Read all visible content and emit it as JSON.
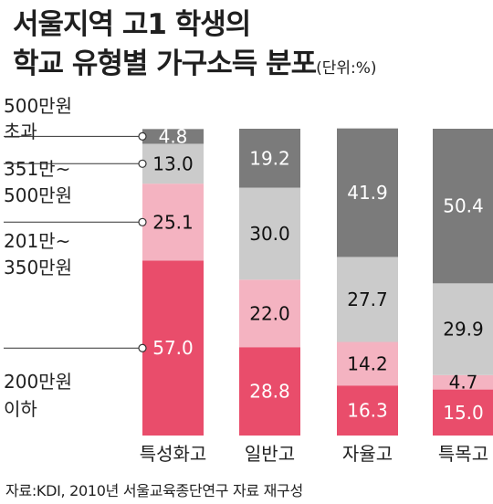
{
  "title": {
    "line1": "서울지역 고1 학생의",
    "line2": "학교 유형별 가구소득 분포",
    "unit": "(단위:%)"
  },
  "source": "자료:KDI, 2010년 서울교육종단연구 자료 재구성",
  "colors": {
    "over500": "#7b7b7b",
    "r351_500": "#cbcbcb",
    "r201_350": "#f4b3c1",
    "under200": "#e94d6b"
  },
  "chart_data": {
    "type": "bar",
    "stacked": true,
    "percent": true,
    "categories": [
      "특성화고",
      "일반고",
      "자율고",
      "특목고"
    ],
    "ylim": [
      0,
      100
    ],
    "series": [
      {
        "name": "200만원 이하",
        "color": "#e94d6b",
        "values": [
          57.0,
          28.8,
          16.3,
          15.0
        ],
        "labels": [
          "57.0",
          "28.8",
          "16.3",
          "15.0"
        ]
      },
      {
        "name": "201만~ 350만원",
        "color": "#f4b3c1",
        "values": [
          25.1,
          22.0,
          14.2,
          4.7
        ],
        "labels": [
          "25.1",
          "22.0",
          "14.2",
          "4.7"
        ]
      },
      {
        "name": "351만~ 500만원",
        "color": "#cbcbcb",
        "values": [
          13.0,
          30.0,
          27.7,
          29.9
        ],
        "labels": [
          "13.0",
          "30.0",
          "27.7",
          "29.9"
        ]
      },
      {
        "name": "500만원 초과",
        "color": "#7b7b7b",
        "values": [
          4.8,
          19.2,
          41.9,
          50.4
        ],
        "labels": [
          "4.8",
          "19.2",
          "41.9",
          "50.4"
        ]
      }
    ],
    "legend": [
      {
        "line1": "500만원",
        "line2": "초과"
      },
      {
        "line1": "351만~",
        "line2": "500만원"
      },
      {
        "line1": "201만~",
        "line2": "350만원"
      },
      {
        "line1": "200만원",
        "line2": "이하"
      }
    ]
  }
}
